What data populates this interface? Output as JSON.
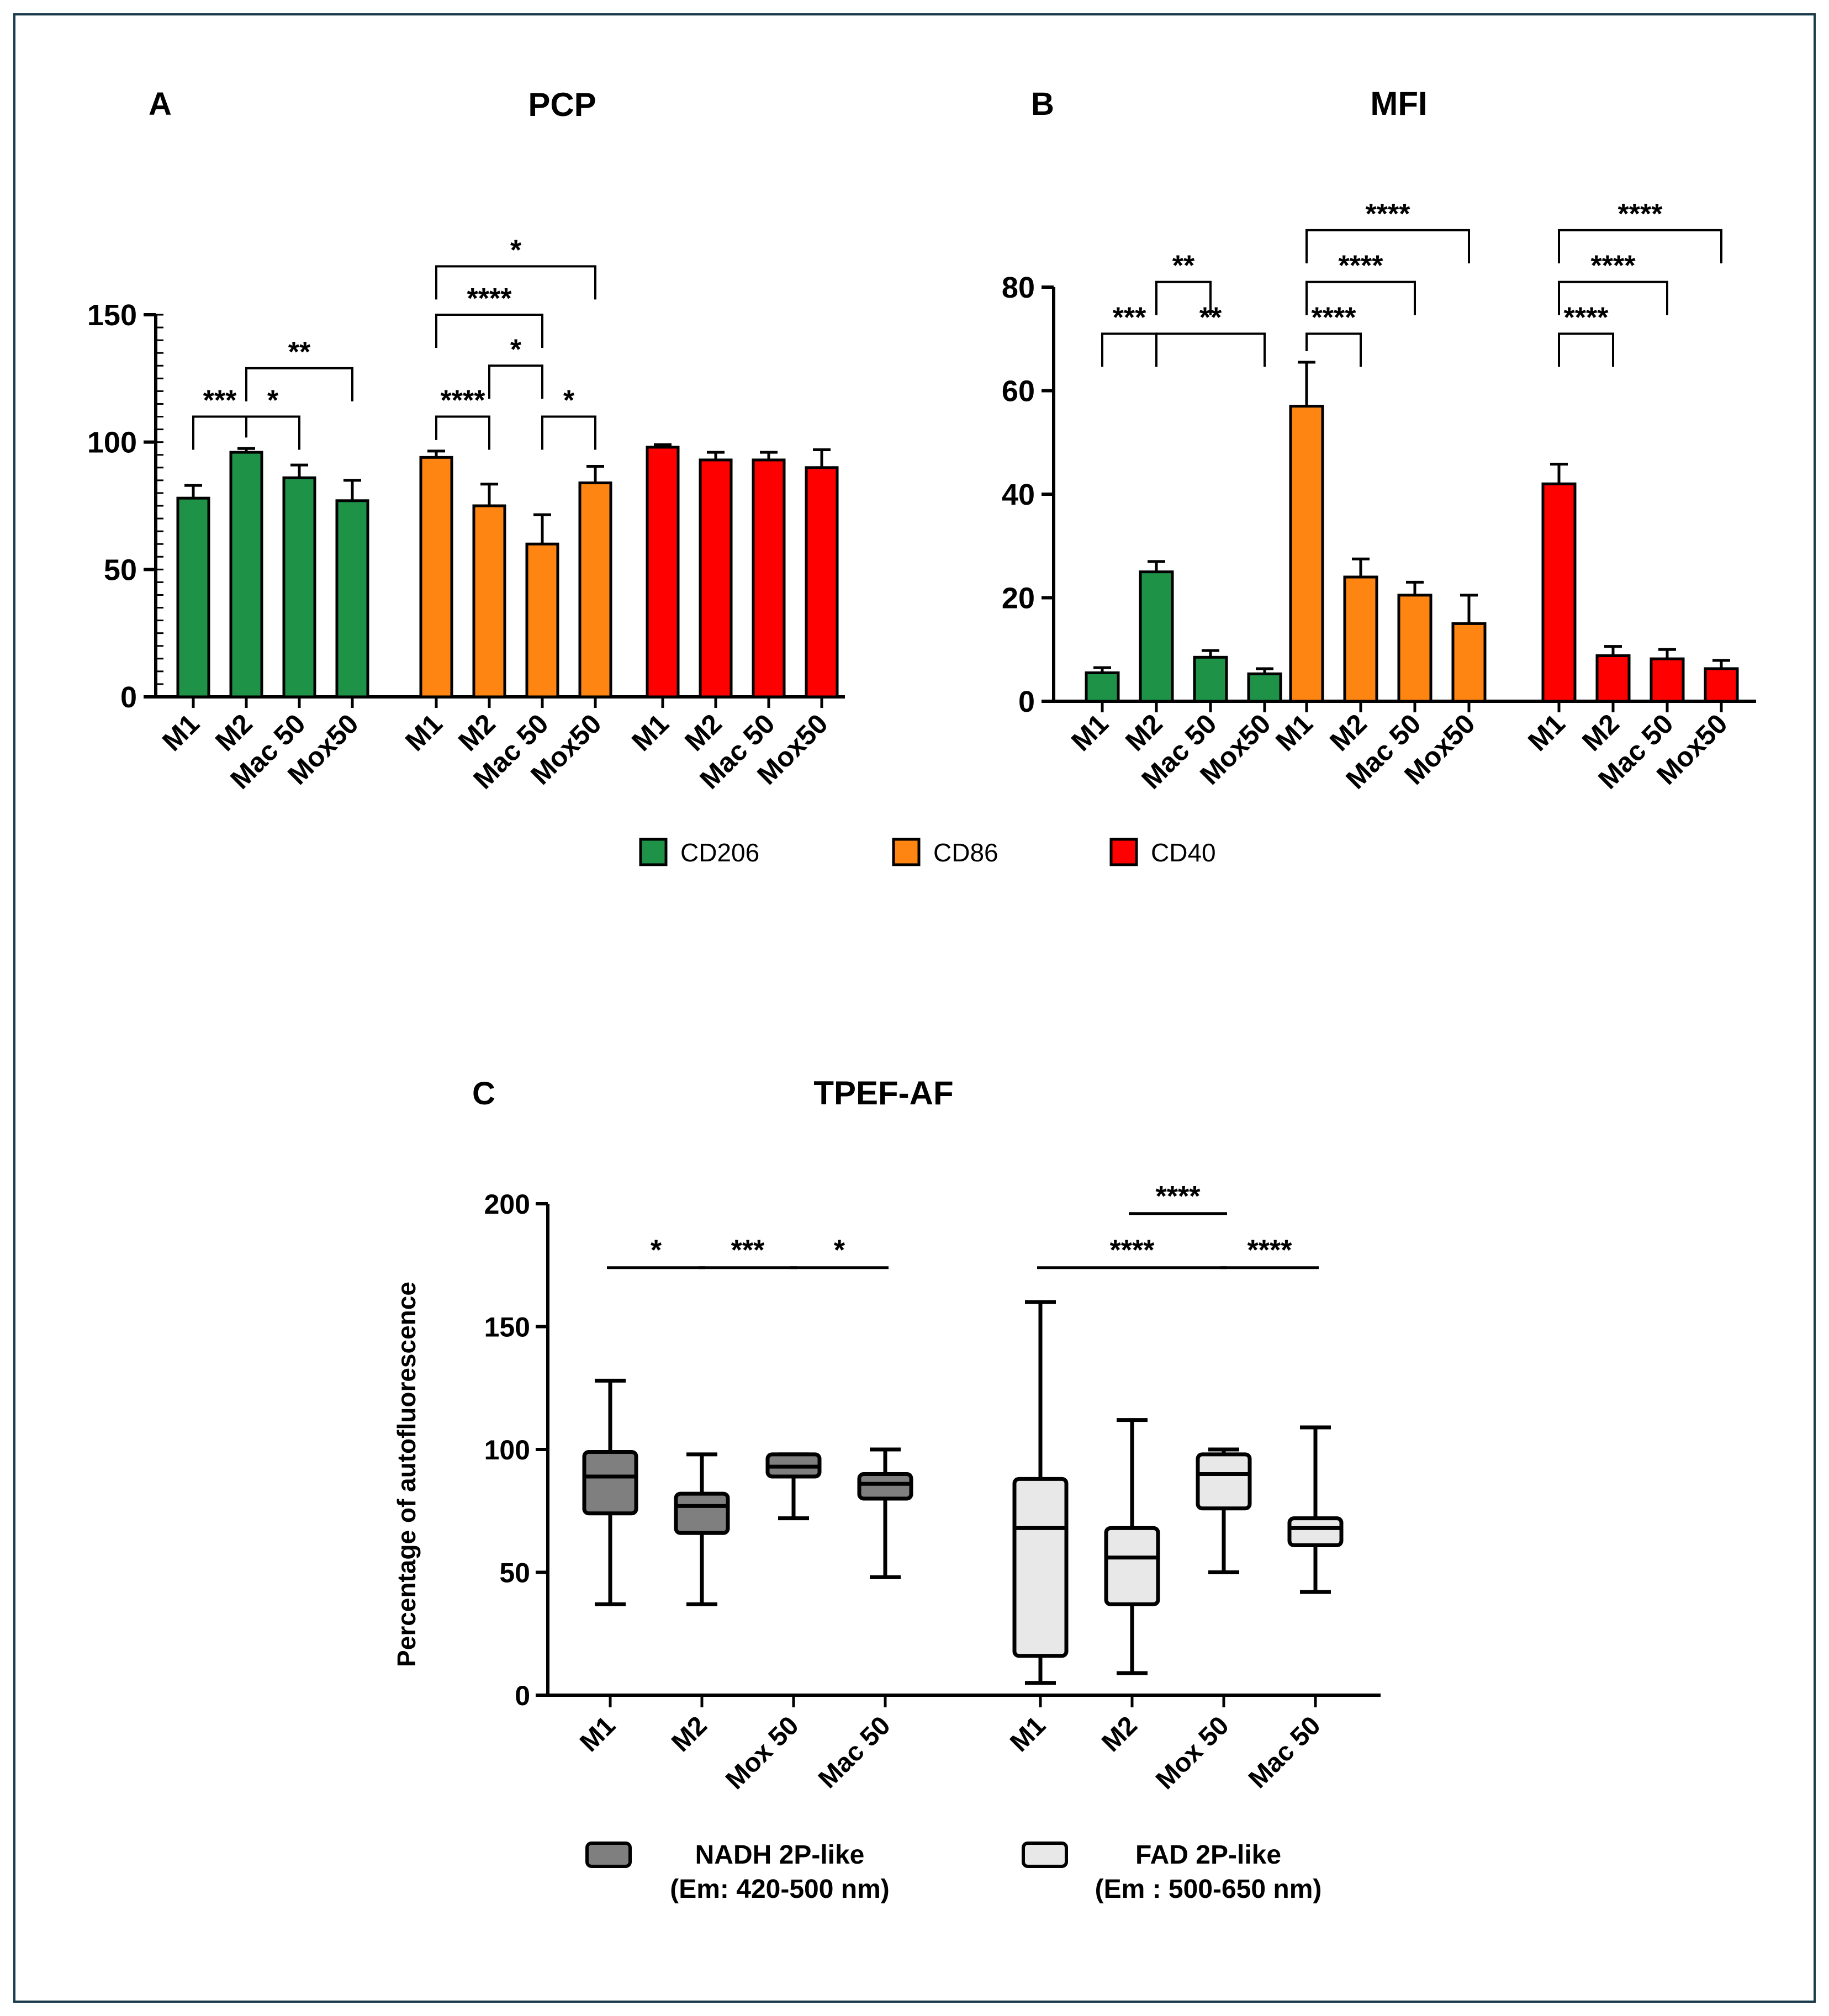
{
  "chart_data": [
    {
      "type": "bar",
      "panel_label": "A",
      "title": "PCP",
      "ylim": [
        0,
        150
      ],
      "yticks": [
        0,
        50,
        100,
        150
      ],
      "groups": [
        {
          "marker": "CD206",
          "color": "#1e9348",
          "categories": [
            "M1",
            "M2",
            "Mac 50",
            "Mox50"
          ],
          "values": [
            78,
            96,
            86,
            77
          ],
          "errors": [
            5,
            1.5,
            5,
            8
          ]
        },
        {
          "marker": "CD86",
          "color": "#ff8512",
          "categories": [
            "M1",
            "M2",
            "Mac 50",
            "Mox50"
          ],
          "values": [
            94,
            75,
            60,
            84
          ],
          "errors": [
            2.5,
            8.5,
            11.5,
            6.5
          ]
        },
        {
          "marker": "CD40",
          "color": "#ff0000",
          "categories": [
            "M1",
            "M2",
            "Mac 50",
            "Mox50"
          ],
          "values": [
            98,
            93,
            93,
            90
          ],
          "errors": [
            1,
            3,
            3,
            7
          ]
        }
      ],
      "significance": [
        {
          "group": 0,
          "from": 0,
          "to": 1,
          "label": "***",
          "y": 110
        },
        {
          "group": 0,
          "from": 1,
          "to": 2,
          "label": "*",
          "y": 110
        },
        {
          "group": 0,
          "from": 1,
          "to": 3,
          "label": "**",
          "y": 129
        },
        {
          "group": 1,
          "from": 0,
          "to": 1,
          "label": "****",
          "y": 110
        },
        {
          "group": 1,
          "from": 2,
          "to": 3,
          "label": "*",
          "y": 110
        },
        {
          "group": 1,
          "from": 1,
          "to": 2,
          "label": "*",
          "y": 130
        },
        {
          "group": 1,
          "from": 0,
          "to": 2,
          "label": "****",
          "y": 150
        },
        {
          "group": 1,
          "from": 0,
          "to": 3,
          "label": "*",
          "y": 169
        }
      ]
    },
    {
      "type": "bar",
      "panel_label": "B",
      "title": "MFI",
      "ylim": [
        0,
        80
      ],
      "yticks": [
        0,
        20,
        40,
        60,
        80
      ],
      "groups": [
        {
          "marker": "CD206",
          "color": "#1e9348",
          "categories": [
            "M1",
            "M2",
            "Mac 50",
            "Mox50"
          ],
          "values": [
            5.5,
            25,
            8.5,
            5.3
          ],
          "errors": [
            1,
            2,
            1.3,
            1
          ]
        },
        {
          "marker": "CD86",
          "color": "#ff8512",
          "categories": [
            "M1",
            "M2",
            "Mac 50",
            "Mox50"
          ],
          "values": [
            57,
            24,
            20.5,
            15
          ],
          "errors": [
            8.5,
            3.5,
            2.5,
            5.5
          ]
        },
        {
          "marker": "CD40",
          "color": "#ff0000",
          "categories": [
            "M1",
            "M2",
            "Mac 50",
            "Mox50"
          ],
          "values": [
            42,
            8.8,
            8.2,
            6.3
          ],
          "errors": [
            3.8,
            1.8,
            1.8,
            1.6
          ]
        }
      ],
      "significance": [
        {
          "group": 0,
          "from": 0,
          "to": 1,
          "label": "***",
          "y": 71
        },
        {
          "group": 0,
          "from": 1,
          "to": 3,
          "label": "**",
          "y": 71
        },
        {
          "group": 0,
          "from": 1,
          "to": 2,
          "label": "**",
          "y": 81
        },
        {
          "group": 1,
          "from": 0,
          "to": 1,
          "label": "****",
          "y": 71
        },
        {
          "group": 1,
          "from": 0,
          "to": 2,
          "label": "****",
          "y": 81
        },
        {
          "group": 1,
          "from": 0,
          "to": 3,
          "label": "****",
          "y": 91
        },
        {
          "group": 2,
          "from": 0,
          "to": 1,
          "label": "****",
          "y": 71
        },
        {
          "group": 2,
          "from": 0,
          "to": 2,
          "label": "****",
          "y": 81
        },
        {
          "group": 2,
          "from": 0,
          "to": 3,
          "label": "****",
          "y": 91
        }
      ]
    },
    {
      "type": "box",
      "panel_label": "C",
      "title": "TPEF-AF",
      "ylabel": "Percentage of autofluorescence",
      "ylim": [
        0,
        200
      ],
      "yticks": [
        0,
        50,
        100,
        150,
        200
      ],
      "groups": [
        {
          "name": "NADH 2P-like",
          "subtitle": "(Em: 420-500 nm)",
          "color": "#7f7f7f",
          "categories": [
            "M1",
            "M2",
            "Mox 50",
            "Mac 50"
          ],
          "boxes": [
            {
              "min": 37,
              "q1": 74,
              "median": 89,
              "q3": 99,
              "max": 128
            },
            {
              "min": 37,
              "q1": 66,
              "median": 77,
              "q3": 82,
              "max": 98
            },
            {
              "min": 72,
              "q1": 89,
              "median": 93,
              "q3": 98,
              "max": 98
            },
            {
              "min": 48,
              "q1": 80,
              "median": 86,
              "q3": 90,
              "max": 100
            }
          ]
        },
        {
          "name": "FAD 2P-like",
          "subtitle": "(Em : 500-650 nm)",
          "color": "#e8e8e8",
          "categories": [
            "M1",
            "M2",
            "Mox 50",
            "Mac 50"
          ],
          "boxes": [
            {
              "min": 5,
              "q1": 16,
              "median": 68,
              "q3": 88,
              "max": 160
            },
            {
              "min": 9,
              "q1": 37,
              "median": 56,
              "q3": 68,
              "max": 112
            },
            {
              "min": 50,
              "q1": 76,
              "median": 90,
              "q3": 98,
              "max": 100
            },
            {
              "min": 42,
              "q1": 61,
              "median": 68,
              "q3": 72,
              "max": 109
            }
          ]
        }
      ],
      "significance": [
        {
          "group": 0,
          "from": 0,
          "to": 1,
          "label": "*",
          "y": 174
        },
        {
          "group": 0,
          "from": 1,
          "to": 2,
          "label": "***",
          "y": 174
        },
        {
          "group": 0,
          "from": 2,
          "to": 3,
          "label": "*",
          "y": 174
        },
        {
          "group": 1,
          "from": 0,
          "to": 2,
          "label": "****",
          "y": 174
        },
        {
          "group": 1,
          "from": 2,
          "to": 3,
          "label": "****",
          "y": 174
        },
        {
          "group": 1,
          "from": 1,
          "to": 2,
          "label": "****",
          "y": 196
        }
      ]
    }
  ],
  "legend_markers": [
    {
      "label": "CD206",
      "color": "#1e9348"
    },
    {
      "label": "CD86",
      "color": "#ff8512"
    },
    {
      "label": "CD40",
      "color": "#ff0000"
    }
  ]
}
